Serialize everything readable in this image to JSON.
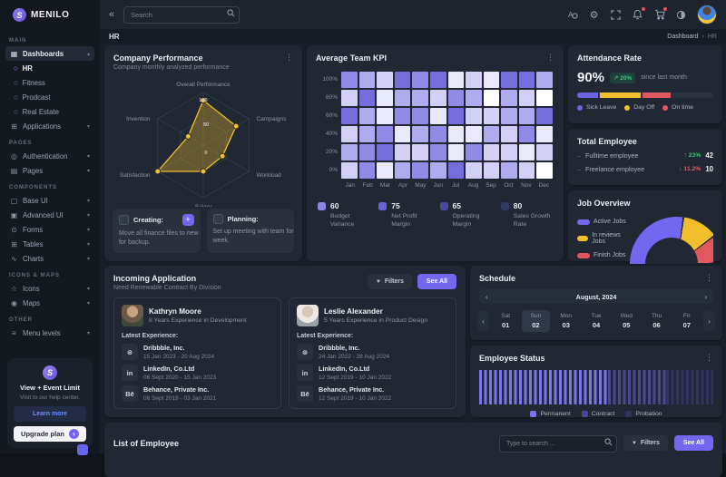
{
  "brand": {
    "name": "MENILO"
  },
  "topbar": {
    "search_placeholder": "Search",
    "icons": [
      {
        "name": "language-icon",
        "badge": false
      },
      {
        "name": "settings-icon",
        "badge": false
      },
      {
        "name": "fullscreen-icon",
        "badge": false
      },
      {
        "name": "bell-icon",
        "badge": true
      },
      {
        "name": "cart-icon",
        "badge": true
      },
      {
        "name": "contrast-icon",
        "badge": false
      }
    ]
  },
  "page": {
    "title": "HR",
    "breadcrumb": [
      "Dashboard",
      "HR"
    ]
  },
  "sidebar": {
    "sections": [
      {
        "label": "MAIN",
        "items": [
          {
            "label": "Dashboards",
            "icon": "grid",
            "chevron": "up",
            "active": true
          },
          {
            "label": "HR",
            "bullet": true,
            "active": true
          },
          {
            "label": "Fitness",
            "bullet": true
          },
          {
            "label": "Prodcast",
            "bullet": true
          },
          {
            "label": "Real Estate",
            "bullet": true
          },
          {
            "label": "Applications",
            "icon": "apps",
            "chevron": "down"
          }
        ]
      },
      {
        "label": "PAGES",
        "items": [
          {
            "label": "Authentication",
            "icon": "user",
            "chevron": "down"
          },
          {
            "label": "Pages",
            "icon": "pages",
            "chevron": "down"
          }
        ]
      },
      {
        "label": "COMPONENTS",
        "items": [
          {
            "label": "Base UI",
            "icon": "base",
            "chevron": "down"
          },
          {
            "label": "Advanced UI",
            "icon": "advanced",
            "chevron": "down"
          },
          {
            "label": "Forms",
            "icon": "forms",
            "chevron": "down"
          },
          {
            "label": "Tables",
            "icon": "tables",
            "chevron": "down"
          },
          {
            "label": "Charts",
            "icon": "charts",
            "chevron": "down"
          }
        ]
      },
      {
        "label": "ICONS & MAPS",
        "items": [
          {
            "label": "Icons",
            "icon": "icons",
            "chevron": "down"
          },
          {
            "label": "Maps",
            "icon": "maps",
            "chevron": "down"
          }
        ]
      },
      {
        "label": "OTHER",
        "items": [
          {
            "label": "Menu levels",
            "icon": "menu",
            "chevron": "down"
          }
        ]
      }
    ],
    "promo": {
      "title": "View + Event Limit",
      "subtitle": "Visit to our help center.",
      "learn_more": "Learn more",
      "upgrade": "Upgrade plan"
    }
  },
  "cards": {
    "performance": {
      "title": "Company Performance",
      "subtitle": "Company monthly analyzed performance",
      "tasks": [
        {
          "label": "Creating:",
          "text": "Move all finance files to new directory for backup.",
          "has_plus": true
        },
        {
          "label": "Planning:",
          "text": "Set up meeting with team for next week.",
          "has_plus": false
        }
      ]
    },
    "kpi": {
      "title": "Average Team KPI",
      "stats": [
        {
          "value": "60",
          "label": "Budget Variance",
          "color": "#8c85e6"
        },
        {
          "value": "75",
          "label": "Net Profit Margin",
          "color": "#6a62d8"
        },
        {
          "value": "65",
          "label": "Operating Margin",
          "color": "#4a47a0"
        },
        {
          "value": "80",
          "label": "Sales Growth Rate",
          "color": "#303a66"
        }
      ]
    },
    "attendance": {
      "title": "Attendance Rate",
      "value": "90%",
      "badge": "↗ 20%",
      "note": "since last month"
    },
    "total_employee": {
      "title": "Total Employee",
      "rows": [
        {
          "label": "Fulltime employee",
          "dir": "up",
          "change": "23%",
          "value": "42"
        },
        {
          "label": "Freelance employee",
          "dir": "down",
          "change": "11.2%",
          "value": "10"
        }
      ]
    },
    "job_overview": {
      "title": "Job Overview"
    },
    "incoming": {
      "title": "Incoming Application",
      "subtitle": "Need Renewable Contract By Division",
      "filters_label": "Filters",
      "see_all_label": "See All",
      "latest_label": "Latest Experience:",
      "applicants": [
        {
          "name": "Kathryn Moore",
          "experience": "8 Years Experience in Development",
          "items": [
            {
              "icon": "dribbble",
              "company": "Dribbble, Inc.",
              "period": "15 Jan 2023 - 20 Aug 2024"
            },
            {
              "icon": "linkedin",
              "company": "LinkedIn, Co.Ltd",
              "period": "06 Sept 2020 - 15 Jan 2023"
            },
            {
              "icon": "behance",
              "company": "Behance, Private Inc.",
              "period": "06 Sept 2019 - 03 Jan 2021"
            }
          ]
        },
        {
          "name": "Leslie Alexander",
          "experience": "5 Years Experience in Product Design",
          "items": [
            {
              "icon": "dribbble",
              "company": "Dribbble, Inc.",
              "period": "24 Jan 2022 - 28 Aug 2024"
            },
            {
              "icon": "linkedin",
              "company": "LinkedIn, Co.Ltd",
              "period": "12 Sept 2019 - 10 Jan 2022"
            },
            {
              "icon": "behance",
              "company": "Behance, Private Inc.",
              "period": "12 Sept 2019 - 10 Jan 2022"
            }
          ]
        }
      ]
    },
    "schedule": {
      "title": "Schedule",
      "month": "August, 2024",
      "days": [
        {
          "dow": "Sat",
          "num": "01",
          "selected": false
        },
        {
          "dow": "Sun",
          "num": "02",
          "selected": true
        },
        {
          "dow": "Mon",
          "num": "03",
          "selected": false
        },
        {
          "dow": "Tue",
          "num": "04",
          "selected": false
        },
        {
          "dow": "Wed",
          "num": "05",
          "selected": false
        },
        {
          "dow": "Thu",
          "num": "06",
          "selected": false
        },
        {
          "dow": "Fri",
          "num": "07",
          "selected": false
        }
      ]
    },
    "employee_status": {
      "title": "Employee Status"
    },
    "list_employee": {
      "title": "List of Employee",
      "search_placeholder": "Type to search ...",
      "filters_label": "Filters",
      "see_all_label": "See All"
    }
  },
  "colors": {
    "purple": "#7367f0",
    "yellow": "#f1bf2b",
    "red": "#e0575e",
    "green": "#28c76f"
  },
  "chart_data": [
    {
      "id": "company_performance_radar",
      "type": "radar",
      "title": "Company Performance",
      "axes": [
        "Overall Performance",
        "Campaigns",
        "Workload",
        "Salary",
        "Satisfaction",
        "Invention"
      ],
      "values": [
        85,
        72,
        42,
        50,
        100,
        33
      ],
      "max": 100,
      "scale_labels": [
        "100",
        "50",
        "0"
      ],
      "color": "#f1bf2b"
    },
    {
      "id": "average_team_kpi_heatmap",
      "type": "heatmap",
      "title": "Average Team KPI",
      "x": [
        "Jan",
        "Feb",
        "Mar",
        "Apr",
        "May",
        "Jun",
        "Jul",
        "Aug",
        "Sep",
        "Oct",
        "Nov",
        "Dec"
      ],
      "y": [
        "100%",
        "80%",
        "60%",
        "40%",
        "20%",
        "0%"
      ],
      "values": [
        [
          80,
          60,
          40,
          100,
          80,
          100,
          20,
          40,
          20,
          100,
          100,
          60
        ],
        [
          40,
          100,
          20,
          60,
          60,
          40,
          80,
          60,
          0,
          60,
          40,
          0
        ],
        [
          100,
          60,
          20,
          80,
          80,
          20,
          100,
          40,
          40,
          60,
          60,
          100
        ],
        [
          40,
          60,
          80,
          20,
          60,
          80,
          20,
          20,
          60,
          40,
          80,
          20
        ],
        [
          60,
          80,
          100,
          40,
          40,
          80,
          20,
          80,
          40,
          40,
          20,
          40
        ],
        [
          40,
          80,
          20,
          60,
          80,
          60,
          100,
          40,
          40,
          60,
          40,
          0
        ]
      ],
      "palette": [
        "#ffffff",
        "#eae8fb",
        "#d4d0f5",
        "#b0aaee",
        "#918ae6",
        "#766ddd"
      ]
    },
    {
      "id": "attendance_bar",
      "type": "bar",
      "segments": [
        {
          "label": "Sick Leave",
          "value": 15,
          "color": "#6c63e0"
        },
        {
          "label": "Day Off",
          "value": 30,
          "color": "#f1bf2b"
        },
        {
          "label": "On time",
          "value": 21,
          "color": "#e0575e"
        }
      ],
      "track_color": "#2b3340"
    },
    {
      "id": "job_overview_gauge",
      "type": "pie",
      "half": true,
      "segments": [
        {
          "label": "Active Jobs",
          "value": 55,
          "color": "#7367f0"
        },
        {
          "label": "In reviews Jobs",
          "value": 25,
          "color": "#f1bf2b"
        },
        {
          "label": "Finish Jobs",
          "value": 20,
          "color": "#e0575e"
        }
      ]
    },
    {
      "id": "employee_status_bar",
      "type": "bar",
      "striped": true,
      "segments": [
        {
          "label": "Permanent",
          "value": 55,
          "color": "#7b74ea"
        },
        {
          "label": "Contract",
          "value": 25,
          "color": "#4b4791"
        },
        {
          "label": "Probation",
          "value": 20,
          "color": "#343260"
        }
      ]
    }
  ]
}
